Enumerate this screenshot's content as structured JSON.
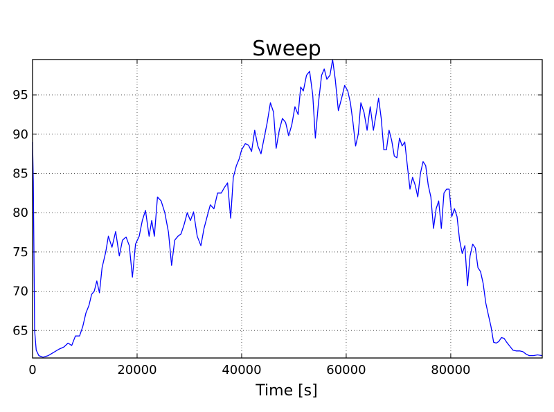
{
  "chart_data": {
    "type": "line",
    "title": "Sweep",
    "xlabel": "Time [s]",
    "ylabel": "",
    "xlim": [
      0,
      97500
    ],
    "ylim": [
      61.5,
      99.5
    ],
    "grid": true,
    "x_ticks": [
      0,
      20000,
      40000,
      60000,
      80000
    ],
    "x_tick_labels": [
      "0",
      "20000",
      "40000",
      "60000",
      "80000"
    ],
    "y_ticks": [
      65,
      70,
      75,
      80,
      85,
      90,
      95
    ],
    "y_tick_labels": [
      "65",
      "70",
      "75",
      "80",
      "85",
      "90",
      "95"
    ],
    "colors": {
      "line": "#0000ff",
      "grid": "#555555",
      "axes": "#000000"
    },
    "series": [
      {
        "points": [
          [
            0,
            89.0
          ],
          [
            150,
            84.0
          ],
          [
            400,
            65.0
          ],
          [
            700,
            62.5
          ],
          [
            1200,
            61.8
          ],
          [
            2000,
            61.6
          ],
          [
            3000,
            61.8
          ],
          [
            4000,
            62.2
          ],
          [
            5000,
            62.6
          ],
          [
            6000,
            62.9
          ],
          [
            6800,
            63.4
          ],
          [
            7500,
            63.1
          ],
          [
            8200,
            64.3
          ],
          [
            9000,
            64.3
          ],
          [
            9600,
            65.5
          ],
          [
            10200,
            67.2
          ],
          [
            10800,
            68.2
          ],
          [
            11300,
            69.6
          ],
          [
            11800,
            70.0
          ],
          [
            12300,
            71.3
          ],
          [
            12800,
            69.8
          ],
          [
            13300,
            73.0
          ],
          [
            14000,
            75.0
          ],
          [
            14500,
            77.0
          ],
          [
            15200,
            75.6
          ],
          [
            15900,
            77.6
          ],
          [
            16600,
            74.5
          ],
          [
            17200,
            76.5
          ],
          [
            17900,
            76.9
          ],
          [
            18500,
            75.8
          ],
          [
            19100,
            71.8
          ],
          [
            19700,
            76.0
          ],
          [
            20400,
            77.0
          ],
          [
            21000,
            79.0
          ],
          [
            21600,
            80.3
          ],
          [
            22300,
            77.0
          ],
          [
            22800,
            79.0
          ],
          [
            23300,
            77.0
          ],
          [
            23900,
            82.0
          ],
          [
            24600,
            81.5
          ],
          [
            25300,
            80.0
          ],
          [
            26000,
            77.5
          ],
          [
            26600,
            73.3
          ],
          [
            27200,
            76.5
          ],
          [
            27800,
            77.0
          ],
          [
            28400,
            77.3
          ],
          [
            29000,
            78.5
          ],
          [
            29600,
            80.0
          ],
          [
            30200,
            79.0
          ],
          [
            30800,
            80.1
          ],
          [
            31500,
            77.0
          ],
          [
            32200,
            75.8
          ],
          [
            32800,
            78.0
          ],
          [
            33400,
            79.5
          ],
          [
            34000,
            81.0
          ],
          [
            34700,
            80.5
          ],
          [
            35400,
            82.5
          ],
          [
            36100,
            82.5
          ],
          [
            36700,
            83.2
          ],
          [
            37300,
            83.8
          ],
          [
            37900,
            79.3
          ],
          [
            38400,
            84.5
          ],
          [
            39000,
            86.0
          ],
          [
            39500,
            86.8
          ],
          [
            40000,
            88.0
          ],
          [
            40700,
            88.8
          ],
          [
            41300,
            88.6
          ],
          [
            41900,
            87.8
          ],
          [
            42500,
            90.5
          ],
          [
            43100,
            88.5
          ],
          [
            43700,
            87.5
          ],
          [
            44300,
            89.5
          ],
          [
            44900,
            91.5
          ],
          [
            45500,
            94.0
          ],
          [
            46100,
            92.8
          ],
          [
            46600,
            88.2
          ],
          [
            47200,
            90.5
          ],
          [
            47800,
            92.0
          ],
          [
            48400,
            91.5
          ],
          [
            49000,
            89.8
          ],
          [
            49600,
            91.2
          ],
          [
            50200,
            93.5
          ],
          [
            50800,
            92.5
          ],
          [
            51300,
            96.0
          ],
          [
            51800,
            95.5
          ],
          [
            52400,
            97.5
          ],
          [
            53000,
            98.0
          ],
          [
            53600,
            95.0
          ],
          [
            54100,
            89.5
          ],
          [
            54700,
            94.0
          ],
          [
            55300,
            97.5
          ],
          [
            55800,
            98.3
          ],
          [
            56300,
            97.0
          ],
          [
            56900,
            97.5
          ],
          [
            57400,
            99.5
          ],
          [
            57900,
            97.0
          ],
          [
            58500,
            93.0
          ],
          [
            59100,
            94.5
          ],
          [
            59700,
            96.2
          ],
          [
            60300,
            95.5
          ],
          [
            60800,
            94.0
          ],
          [
            61300,
            91.5
          ],
          [
            61800,
            88.5
          ],
          [
            62300,
            90.0
          ],
          [
            62800,
            94.0
          ],
          [
            63400,
            92.8
          ],
          [
            64000,
            90.5
          ],
          [
            64600,
            93.5
          ],
          [
            65200,
            90.5
          ],
          [
            65700,
            92.5
          ],
          [
            66200,
            94.6
          ],
          [
            66700,
            92.0
          ],
          [
            67200,
            88.0
          ],
          [
            67700,
            88.0
          ],
          [
            68200,
            90.5
          ],
          [
            68700,
            89.2
          ],
          [
            69200,
            87.2
          ],
          [
            69700,
            87.0
          ],
          [
            70200,
            89.5
          ],
          [
            70700,
            88.5
          ],
          [
            71200,
            89.0
          ],
          [
            71700,
            86.0
          ],
          [
            72200,
            83.0
          ],
          [
            72700,
            84.5
          ],
          [
            73200,
            83.5
          ],
          [
            73700,
            82.0
          ],
          [
            74200,
            85.0
          ],
          [
            74700,
            86.5
          ],
          [
            75200,
            86.0
          ],
          [
            75700,
            83.5
          ],
          [
            76200,
            82.0
          ],
          [
            76700,
            78.0
          ],
          [
            77200,
            80.5
          ],
          [
            77700,
            81.5
          ],
          [
            78200,
            78.0
          ],
          [
            78700,
            82.5
          ],
          [
            79200,
            83.0
          ],
          [
            79700,
            83.0
          ],
          [
            80200,
            79.5
          ],
          [
            80700,
            80.5
          ],
          [
            81200,
            79.5
          ],
          [
            81700,
            76.5
          ],
          [
            82200,
            74.8
          ],
          [
            82700,
            75.8
          ],
          [
            83200,
            70.7
          ],
          [
            83700,
            74.5
          ],
          [
            84200,
            76.0
          ],
          [
            84700,
            75.5
          ],
          [
            85200,
            73.0
          ],
          [
            85700,
            72.5
          ],
          [
            86200,
            71.0
          ],
          [
            86700,
            68.5
          ],
          [
            87200,
            67.0
          ],
          [
            87700,
            65.5
          ],
          [
            88200,
            63.5
          ],
          [
            88700,
            63.4
          ],
          [
            89200,
            63.6
          ],
          [
            89700,
            64.1
          ],
          [
            90200,
            64.0
          ],
          [
            90700,
            63.5
          ],
          [
            91300,
            63.0
          ],
          [
            91900,
            62.5
          ],
          [
            92500,
            62.4
          ],
          [
            93200,
            62.4
          ],
          [
            93800,
            62.3
          ],
          [
            94400,
            62.0
          ],
          [
            95000,
            61.8
          ],
          [
            95800,
            61.8
          ],
          [
            96600,
            61.9
          ],
          [
            97500,
            61.8
          ]
        ]
      }
    ]
  }
}
